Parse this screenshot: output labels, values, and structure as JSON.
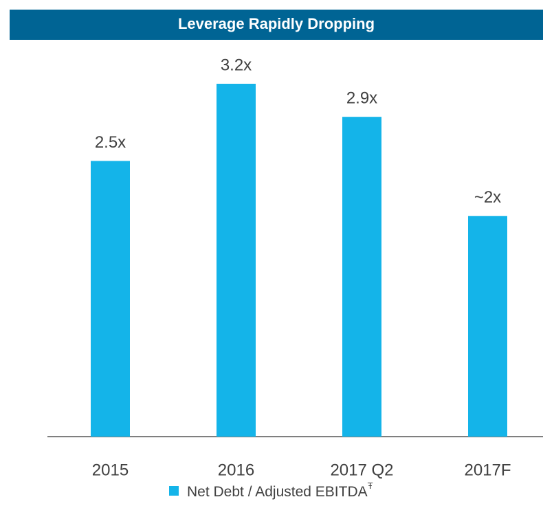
{
  "chart_data": {
    "type": "bar",
    "title": "Leverage Rapidly Dropping",
    "categories": [
      "2015",
      "2016",
      "2017 Q2",
      "2017F"
    ],
    "series": [
      {
        "name": "Net Debt / Adjusted EBITDA",
        "color": "#14b4e9",
        "values": [
          2.5,
          3.2,
          2.9,
          2
        ],
        "value_labels": [
          "2.5x",
          "3.2x",
          "2.9x",
          "~2x"
        ]
      }
    ],
    "legend_footnote_mark": "Ŧ",
    "title_color": "#006494"
  }
}
